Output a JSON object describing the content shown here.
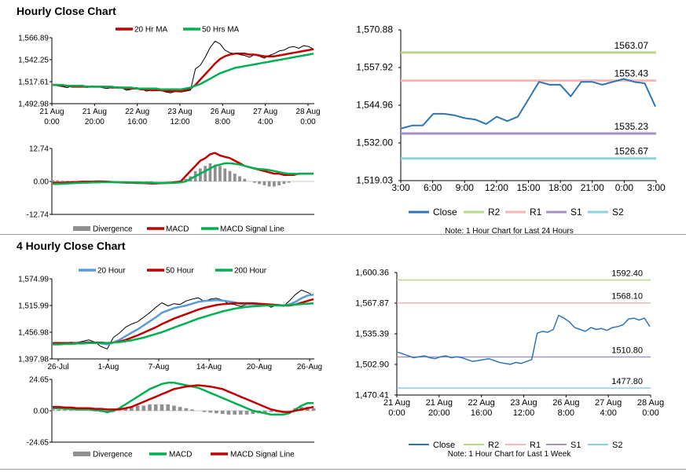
{
  "sections": [
    {
      "title": "Hourly Close Chart"
    },
    {
      "title": "4 Hourly Close Chart"
    }
  ],
  "colors": {
    "price": "#000000",
    "ma_red": "#c00000",
    "ma_green": "#00b050",
    "ma_blue": "#5b9bd5",
    "close": "#2e75b6",
    "r2": "#b8d98b",
    "r1": "#f4b8b8",
    "s1": "#a492c4",
    "s2": "#8dd1dd",
    "divergence": "#909090"
  },
  "chart_data": [
    {
      "id": "hourly-price",
      "type": "line",
      "x_ticks": [
        "21 Aug\n0:00",
        "21 Aug\n20:00",
        "22 Aug\n16:00",
        "23 Aug\n12:00",
        "26 Aug\n8:00",
        "27 Aug\n4:00",
        "28 Aug\n0:00"
      ],
      "y_ticks": [
        "1,566.89",
        "1,542.25",
        "1,517.61",
        "1,492.98"
      ],
      "ylim": [
        1492.98,
        1566.89
      ],
      "legend": [
        "20 Hr MA",
        "50 Hrs MA"
      ],
      "series": [
        {
          "name": "Price",
          "color": "#000000",
          "values": [
            1514,
            1513,
            1512,
            1511,
            1513,
            1512,
            1512,
            1511,
            1513,
            1512,
            1511,
            1510,
            1511,
            1512,
            1511,
            1508,
            1509,
            1511,
            1510,
            1507,
            1508,
            1509,
            1508,
            1506,
            1505,
            1507,
            1506,
            1507,
            1508,
            1532,
            1536,
            1545,
            1556,
            1563,
            1560,
            1553,
            1550,
            1549,
            1548,
            1547,
            1545,
            1548,
            1546,
            1544,
            1547,
            1549,
            1552,
            1553,
            1556,
            1557,
            1555,
            1558,
            1557,
            1554
          ]
        },
        {
          "name": "20 Hr MA",
          "color": "#c00000",
          "values": [
            1514,
            1514,
            1513,
            1513,
            1512,
            1512,
            1512,
            1512,
            1512,
            1512,
            1512,
            1512,
            1511,
            1511,
            1511,
            1510,
            1510,
            1510,
            1509,
            1509,
            1508,
            1508,
            1508,
            1507,
            1507,
            1507,
            1507,
            1508,
            1510,
            1514,
            1520,
            1526,
            1532,
            1538,
            1543,
            1546,
            1548,
            1549,
            1549,
            1549,
            1548,
            1548,
            1547,
            1546,
            1546,
            1546,
            1547,
            1548,
            1549,
            1550,
            1551,
            1552,
            1553,
            1554
          ]
        },
        {
          "name": "50 Hrs MA",
          "color": "#00b050",
          "values": [
            1514,
            1514,
            1514,
            1513,
            1513,
            1513,
            1513,
            1512,
            1512,
            1512,
            1512,
            1512,
            1512,
            1511,
            1511,
            1511,
            1511,
            1510,
            1510,
            1510,
            1510,
            1510,
            1509,
            1509,
            1509,
            1509,
            1509,
            1510,
            1511,
            1513,
            1515,
            1518,
            1521,
            1524,
            1527,
            1529,
            1531,
            1533,
            1534,
            1535,
            1536,
            1537,
            1538,
            1539,
            1540,
            1541,
            1542,
            1543,
            1544,
            1545,
            1546,
            1547,
            1548,
            1549
          ]
        }
      ]
    },
    {
      "id": "hourly-macd",
      "type": "bar+line",
      "y_ticks": [
        "12.74",
        "0.00",
        "-12.74"
      ],
      "ylim": [
        -12.74,
        12.74
      ],
      "legend": [
        "Divergence",
        "MACD",
        "MACD Signal Line"
      ],
      "series": [
        {
          "name": "Divergence",
          "color": "#909090",
          "values": [
            0.5,
            0.4,
            0.3,
            0.2,
            0.2,
            0.1,
            0.1,
            0,
            0,
            0.1,
            0.1,
            0,
            0,
            -0.1,
            -0.2,
            -0.3,
            -0.2,
            -0.1,
            -0.1,
            -0.2,
            -0.2,
            -0.1,
            0,
            0,
            0.1,
            0.2,
            0.3,
            1,
            2,
            4,
            5,
            6,
            7,
            6.5,
            6,
            5,
            4,
            3,
            2,
            1,
            0,
            -0.5,
            -1,
            -1.5,
            -2,
            -2,
            -1.5,
            -1,
            -0.5,
            0,
            0,
            0,
            0,
            0
          ]
        },
        {
          "name": "MACD",
          "color": "#c00000",
          "values": [
            -0.5,
            -0.5,
            -0.5,
            -0.4,
            -0.3,
            -0.2,
            -0.1,
            -0.1,
            -0.1,
            0,
            0,
            -0.1,
            -0.2,
            -0.3,
            -0.4,
            -0.5,
            -0.5,
            -0.6,
            -0.6,
            -0.7,
            -0.8,
            -0.8,
            -0.7,
            -0.6,
            -0.5,
            -0.3,
            0,
            2,
            4,
            6,
            8,
            9,
            10.5,
            11,
            10,
            9.5,
            9,
            8,
            7,
            6,
            5.5,
            5,
            4.5,
            4,
            3.5,
            3,
            3,
            2.5,
            2.5,
            2.5,
            3,
            3,
            3,
            3
          ]
        },
        {
          "name": "MACD Signal Line",
          "color": "#00b050",
          "values": [
            -1,
            -1,
            -0.9,
            -0.8,
            -0.7,
            -0.6,
            -0.5,
            -0.5,
            -0.4,
            -0.4,
            -0.3,
            -0.3,
            -0.3,
            -0.3,
            -0.3,
            -0.3,
            -0.4,
            -0.4,
            -0.5,
            -0.5,
            -0.5,
            -0.6,
            -0.6,
            -0.6,
            -0.6,
            -0.5,
            -0.4,
            0,
            1,
            2,
            3,
            4,
            5,
            6,
            6.5,
            7,
            7,
            6.8,
            6.5,
            6,
            5.5,
            5,
            4.8,
            4.6,
            4.4,
            4,
            3.6,
            3.2,
            3,
            2.9,
            2.9,
            3,
            3,
            3
          ]
        }
      ]
    },
    {
      "id": "hourly-close-24h",
      "type": "line",
      "x_ticks": [
        "3:00",
        "6:00",
        "9:00",
        "12:00",
        "15:00",
        "18:00",
        "21:00",
        "0:00",
        "3:00"
      ],
      "y_ticks": [
        "1,570.88",
        "1,557.92",
        "1,544.96",
        "1,532.00",
        "1,519.03"
      ],
      "ylim": [
        1519.03,
        1570.88
      ],
      "levels": [
        {
          "name": "R2",
          "value": 1563.07,
          "label": "1563.07"
        },
        {
          "name": "R1",
          "value": 1553.43,
          "label": "1553.43"
        },
        {
          "name": "S1",
          "value": 1535.23,
          "label": "1535.23"
        },
        {
          "name": "S2",
          "value": 1526.67,
          "label": "1526.67"
        }
      ],
      "series": [
        {
          "name": "Close",
          "color": "#2e75b6",
          "values": [
            1537,
            1538,
            1538,
            1542,
            1542,
            1541.5,
            1540.5,
            1540,
            1538.5,
            1541,
            1539.5,
            1541,
            1547,
            1553,
            1552,
            1552,
            1548,
            1553,
            1553,
            1552,
            1553,
            1554,
            1553,
            1552.5,
            1544.5
          ]
        }
      ],
      "legend": [
        "Close",
        "R2",
        "R1",
        "S1",
        "S2"
      ],
      "note": "Note: 1 Hour Chart for Last 24 Hours"
    },
    {
      "id": "four-hourly-price",
      "type": "line",
      "x_ticks": [
        "26-Jul",
        "1-Aug",
        "7-Aug",
        "14-Aug",
        "20-Aug",
        "26-Aug"
      ],
      "y_ticks": [
        "1,574.99",
        "1,515.99",
        "1,456.98",
        "1,397.98"
      ],
      "ylim": [
        1397.98,
        1574.99
      ],
      "legend": [
        "20 Hour",
        "50 Hour",
        "200 Hour"
      ],
      "series": [
        {
          "name": "Price",
          "color": "#000000",
          "values": [
            1432,
            1430,
            1433,
            1435,
            1434,
            1437,
            1440,
            1435,
            1425,
            1420,
            1445,
            1455,
            1468,
            1475,
            1480,
            1490,
            1500,
            1512,
            1522,
            1515,
            1520,
            1518,
            1526,
            1530,
            1533,
            1525,
            1530,
            1532,
            1528,
            1520,
            1518,
            1514,
            1518,
            1522,
            1516,
            1520,
            1512,
            1518,
            1514,
            1526,
            1540,
            1550,
            1545,
            1538
          ]
        },
        {
          "name": "20 Hour",
          "color": "#5b9bd5",
          "values": [
            1432,
            1432,
            1432,
            1433,
            1433,
            1434,
            1435,
            1434,
            1432,
            1430,
            1434,
            1440,
            1448,
            1456,
            1463,
            1472,
            1481,
            1490,
            1500,
            1505,
            1510,
            1513,
            1516,
            1520,
            1524,
            1526,
            1527,
            1528,
            1527,
            1525,
            1523,
            1520,
            1519,
            1519,
            1518,
            1518,
            1517,
            1517,
            1516,
            1518,
            1524,
            1532,
            1538,
            1540
          ]
        },
        {
          "name": "50 Hour",
          "color": "#c00000",
          "values": [
            1433,
            1433,
            1433,
            1433,
            1433,
            1433,
            1434,
            1434,
            1434,
            1433,
            1434,
            1436,
            1440,
            1445,
            1450,
            1456,
            1462,
            1468,
            1475,
            1481,
            1487,
            1492,
            1497,
            1502,
            1507,
            1511,
            1514,
            1517,
            1519,
            1520,
            1521,
            1521,
            1521,
            1521,
            1520,
            1519,
            1518,
            1517,
            1516,
            1516,
            1518,
            1522,
            1526,
            1530
          ]
        },
        {
          "name": "200 Hour",
          "color": "#00b050",
          "values": [
            1430,
            1430,
            1431,
            1431,
            1432,
            1432,
            1433,
            1433,
            1433,
            1433,
            1434,
            1435,
            1437,
            1439,
            1442,
            1445,
            1449,
            1453,
            1457,
            1462,
            1467,
            1472,
            1477,
            1482,
            1487,
            1491,
            1495,
            1499,
            1503,
            1506,
            1509,
            1511,
            1513,
            1514,
            1515,
            1516,
            1516,
            1516,
            1516,
            1517,
            1518,
            1519,
            1520,
            1521
          ]
        }
      ]
    },
    {
      "id": "four-hourly-macd",
      "type": "bar+line",
      "y_ticks": [
        "24.65",
        "0.00",
        "-24.65"
      ],
      "ylim": [
        -24.65,
        24.65
      ],
      "legend": [
        "Divergence",
        "MACD",
        "MACD Signal Line"
      ],
      "series": [
        {
          "name": "Divergence",
          "color": "#909090",
          "values": [
            1,
            1,
            0.5,
            0.5,
            0,
            0,
            0,
            -0.5,
            -1,
            -2,
            -1,
            0,
            2,
            3,
            4,
            4,
            5,
            5,
            5,
            5,
            4,
            3,
            2,
            1,
            0,
            -1,
            -1.5,
            -2,
            -2.5,
            -3,
            -3,
            -3,
            -3,
            -2.5,
            -2,
            -1.5,
            -1,
            -1,
            -1,
            0,
            2,
            3,
            3,
            2
          ]
        },
        {
          "name": "MACD",
          "color": "#00b050",
          "values": [
            2,
            2,
            1.5,
            1.5,
            1,
            1,
            1,
            0.5,
            0,
            -1,
            0,
            2,
            5,
            8,
            11,
            14,
            17,
            19,
            21,
            22,
            22,
            21,
            20,
            19,
            18,
            16,
            14,
            12,
            10,
            8,
            6,
            4,
            2,
            0,
            -1,
            -2,
            -3,
            -3,
            -3,
            -2,
            1,
            4,
            6,
            6
          ]
        },
        {
          "name": "MACD Signal Line",
          "color": "#c00000",
          "values": [
            3,
            3,
            2.5,
            2.5,
            2,
            2,
            2,
            1.5,
            1.5,
            1,
            1,
            1,
            2,
            3,
            5,
            7,
            9,
            11,
            13,
            15,
            17,
            18,
            19,
            19.5,
            20,
            19.5,
            19,
            18,
            17,
            15,
            13,
            11,
            9,
            7,
            5,
            3,
            1,
            0,
            -1,
            -1,
            0,
            1,
            2,
            3
          ]
        }
      ]
    },
    {
      "id": "hourly-close-1w",
      "type": "line",
      "x_ticks": [
        "21 Aug\n0:00",
        "21 Aug\n20:00",
        "22 Aug\n16:00",
        "23 Aug\n12:00",
        "26 Aug\n8:00",
        "27 Aug\n4:00",
        "28 Aug\n0:00"
      ],
      "y_ticks": [
        "1,600.36",
        "1,567.87",
        "1,535.39",
        "1,502.90",
        "1,470.41"
      ],
      "ylim": [
        1470.41,
        1600.36
      ],
      "levels": [
        {
          "name": "R2",
          "value": 1592.4,
          "label": "1592.40"
        },
        {
          "name": "R1",
          "value": 1568.1,
          "label": "1568.10"
        },
        {
          "name": "S1",
          "value": 1510.8,
          "label": "1510.80"
        },
        {
          "name": "S2",
          "value": 1477.8,
          "label": "1477.80"
        }
      ],
      "series": [
        {
          "name": "Close",
          "color": "#2e75b6",
          "values": [
            1516,
            1514,
            1512,
            1510,
            1511,
            1512,
            1510,
            1509,
            1511,
            1512,
            1510,
            1511,
            1510,
            1508,
            1506,
            1507,
            1508,
            1509,
            1507,
            1505,
            1504,
            1503,
            1505,
            1504,
            1506,
            1508,
            1536,
            1538,
            1537,
            1540,
            1555,
            1552,
            1548,
            1542,
            1540,
            1538,
            1542,
            1540,
            1541,
            1539,
            1542,
            1543,
            1545,
            1551,
            1552,
            1550,
            1552,
            1543
          ]
        }
      ],
      "legend": [
        "Close",
        "R2",
        "R1",
        "S1",
        "S2"
      ],
      "note": "Note: 1 Hour Chart for Last 1 Week"
    }
  ]
}
